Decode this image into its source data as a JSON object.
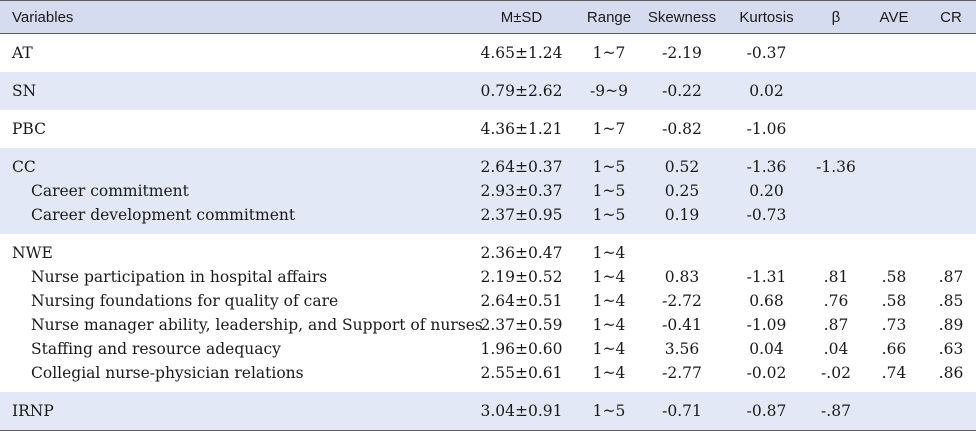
{
  "table": {
    "headers": {
      "variables": "Variables",
      "msd": "M±SD",
      "range": "Range",
      "skewness": "Skewness",
      "kurtosis": "Kurtosis",
      "beta": "β",
      "ave": "AVE",
      "cr": "CR"
    },
    "groups": [
      {
        "shade": false,
        "rows": [
          {
            "variable": "AT",
            "sub": false,
            "msd": "4.65±1.24",
            "range": "1~7",
            "skewness": "-2.19",
            "kurtosis": "-0.37",
            "beta": "",
            "ave": "",
            "cr": ""
          }
        ]
      },
      {
        "shade": true,
        "rows": [
          {
            "variable": "SN",
            "sub": false,
            "msd": "0.79±2.62",
            "range": "-9~9",
            "skewness": "-0.22",
            "kurtosis": "0.02",
            "beta": "",
            "ave": "",
            "cr": ""
          }
        ]
      },
      {
        "shade": false,
        "rows": [
          {
            "variable": "PBC",
            "sub": false,
            "msd": "4.36±1.21",
            "range": "1~7",
            "skewness": "-0.82",
            "kurtosis": "-1.06",
            "beta": "",
            "ave": "",
            "cr": ""
          }
        ]
      },
      {
        "shade": true,
        "rows": [
          {
            "variable": "CC",
            "sub": false,
            "msd": "2.64±0.37",
            "range": "1~5",
            "skewness": "0.52",
            "kurtosis": "-1.36",
            "beta": "-1.36",
            "ave": "",
            "cr": ""
          },
          {
            "variable": "Career commitment",
            "sub": true,
            "msd": "2.93±0.37",
            "range": "1~5",
            "skewness": "0.25",
            "kurtosis": "0.20",
            "beta": "",
            "ave": "",
            "cr": ""
          },
          {
            "variable": "Career development commitment",
            "sub": true,
            "msd": "2.37±0.95",
            "range": "1~5",
            "skewness": "0.19",
            "kurtosis": "-0.73",
            "beta": "",
            "ave": "",
            "cr": ""
          }
        ]
      },
      {
        "shade": false,
        "rows": [
          {
            "variable": "NWE",
            "sub": false,
            "msd": "2.36±0.47",
            "range": "1~4",
            "skewness": "",
            "kurtosis": "",
            "beta": "",
            "ave": "",
            "cr": ""
          },
          {
            "variable": "Nurse participation in hospital affairs",
            "sub": true,
            "msd": "2.19±0.52",
            "range": "1~4",
            "skewness": "0.83",
            "kurtosis": "-1.31",
            "beta": ".81",
            "ave": ".58",
            "cr": ".87"
          },
          {
            "variable": "Nursing foundations for quality of care",
            "sub": true,
            "msd": "2.64±0.51",
            "range": "1~4",
            "skewness": "-2.72",
            "kurtosis": "0.68",
            "beta": ".76",
            "ave": ".58",
            "cr": ".85"
          },
          {
            "variable": "Nurse manager ability, leadership, and Support of nurses",
            "sub": true,
            "msd": "2.37±0.59",
            "range": "1~4",
            "skewness": "-0.41",
            "kurtosis": "-1.09",
            "beta": ".87",
            "ave": ".73",
            "cr": ".89"
          },
          {
            "variable": "Staffing and resource adequacy",
            "sub": true,
            "msd": "1.96±0.60",
            "range": "1~4",
            "skewness": "3.56",
            "kurtosis": "0.04",
            "beta": ".04",
            "ave": ".66",
            "cr": ".63"
          },
          {
            "variable": "Collegial nurse-physician relations",
            "sub": true,
            "msd": "2.55±0.61",
            "range": "1~4",
            "skewness": "-2.77",
            "kurtosis": "-0.02",
            "beta": "-.02",
            "ave": ".74",
            "cr": ".86"
          }
        ]
      },
      {
        "shade": true,
        "rows": [
          {
            "variable": "IRNP",
            "sub": false,
            "msd": "3.04±0.91",
            "range": "1~5",
            "skewness": "-0.71",
            "kurtosis": "-0.87",
            "beta": "-.87",
            "ave": "",
            "cr": ""
          }
        ]
      }
    ]
  }
}
